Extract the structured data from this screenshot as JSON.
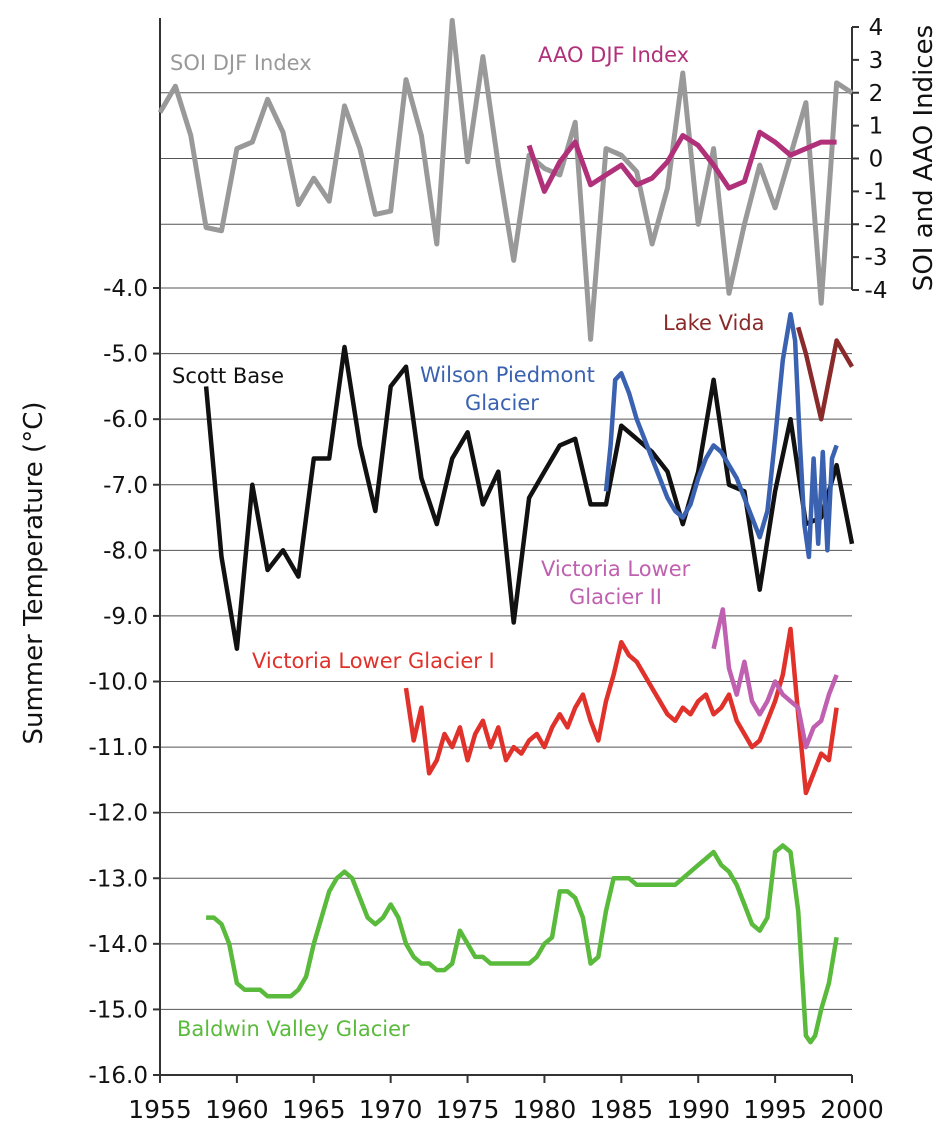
{
  "chart_data": {
    "type": "line",
    "title": "",
    "xlabel": "",
    "ylabel": "Summer Temperature (°C)",
    "y2label": "SOI and AAO Indices",
    "xlim": [
      1955,
      2000
    ],
    "ylim": [
      -16,
      -4
    ],
    "y2lim": [
      -4,
      4
    ],
    "x_ticks": [
      1955,
      1960,
      1965,
      1970,
      1975,
      1980,
      1985,
      1990,
      1995,
      2000
    ],
    "y_ticks": [
      "-4.0",
      "-5.0",
      "-6.0",
      "-7.0",
      "-8.0",
      "-9.0",
      "-10.0",
      "-11.0",
      "-12.0",
      "-13.0",
      "-14.0",
      "-15.0",
      "-16.0"
    ],
    "y2_ticks": [
      "4",
      "3",
      "2",
      "1",
      "0",
      "-1",
      "-2",
      "-3",
      "-4"
    ],
    "grid": true,
    "series": [
      {
        "name": "SOI DJF Index",
        "axis": "right",
        "color": "#999999",
        "x": [
          1955,
          1956,
          1957,
          1958,
          1959,
          1960,
          1961,
          1962,
          1963,
          1964,
          1965,
          1966,
          1967,
          1968,
          1969,
          1970,
          1971,
          1972,
          1973,
          1974,
          1975,
          1976,
          1977,
          1978,
          1979,
          1980,
          1981,
          1982,
          1983,
          1984,
          1985,
          1986,
          1987,
          1988,
          1989,
          1990,
          1991,
          1992,
          1993,
          1994,
          1995,
          1996,
          1997,
          1998,
          1999,
          2000
        ],
        "y": [
          1.4,
          2.2,
          0.7,
          -2.1,
          -2.2,
          0.3,
          0.5,
          1.8,
          0.8,
          -1.4,
          -0.6,
          -1.3,
          1.6,
          0.3,
          -1.7,
          -1.6,
          2.4,
          0.7,
          -2.6,
          4.2,
          -0.1,
          3.1,
          -0.2,
          -3.1,
          0.1,
          -0.3,
          -0.5,
          1.1,
          -5.5,
          0.3,
          0.1,
          -0.4,
          -2.6,
          -0.9,
          2.6,
          -2.0,
          0.3,
          -4.1,
          -2.0,
          -0.2,
          -1.5,
          0.1,
          1.7,
          -4.4,
          2.3,
          2.0
        ]
      },
      {
        "name": "AAO DJF Index",
        "axis": "right",
        "color": "#b0307a",
        "x": [
          1979,
          1980,
          1981,
          1982,
          1983,
          1984,
          1985,
          1986,
          1987,
          1988,
          1989,
          1990,
          1991,
          1992,
          1993,
          1994,
          1995,
          1996,
          1997,
          1998,
          1999
        ],
        "y": [
          0.4,
          -1.0,
          -0.1,
          0.5,
          -0.8,
          -0.5,
          -0.2,
          -0.8,
          -0.6,
          -0.1,
          0.7,
          0.4,
          -0.2,
          -0.9,
          -0.7,
          0.8,
          0.5,
          0.1,
          0.3,
          0.5,
          0.5
        ]
      },
      {
        "name": "Scott Base",
        "axis": "left",
        "color": "#111111",
        "x": [
          1958,
          1959,
          1960,
          1961,
          1962,
          1963,
          1964,
          1965,
          1966,
          1967,
          1968,
          1969,
          1970,
          1971,
          1972,
          1973,
          1974,
          1975,
          1976,
          1977,
          1978,
          1979,
          1980,
          1981,
          1982,
          1983,
          1984,
          1985,
          1986,
          1987,
          1988,
          1989,
          1990,
          1991,
          1992,
          1993,
          1994,
          1995,
          1996,
          1997,
          1998,
          1999,
          2000
        ],
        "y": [
          -5.5,
          -8.1,
          -9.5,
          -7.0,
          -8.3,
          -8.0,
          -8.4,
          -6.6,
          -6.6,
          -4.9,
          -6.4,
          -7.4,
          -5.5,
          -5.2,
          -6.9,
          -7.6,
          -6.6,
          -6.2,
          -7.3,
          -6.8,
          -9.1,
          -7.2,
          -6.8,
          -6.4,
          -6.3,
          -7.3,
          -7.3,
          -6.1,
          -6.3,
          -6.5,
          -6.8,
          -7.6,
          -6.8,
          -5.4,
          -7.0,
          -7.1,
          -8.6,
          -7.1,
          -6.0,
          -7.6,
          -7.5,
          -6.7,
          -7.9
        ]
      },
      {
        "name": "Wilson Piedmont Glacier",
        "label_lines": [
          "Wilson Piedmont",
          "Glacier"
        ],
        "axis": "left",
        "color": "#3a62b0",
        "x": [
          1984.0,
          1984.3,
          1984.6,
          1985.0,
          1985.5,
          1986.0,
          1986.5,
          1987.0,
          1987.5,
          1988.0,
          1988.5,
          1989.0,
          1989.5,
          1990.0,
          1990.5,
          1991.0,
          1991.5,
          1992.0,
          1992.5,
          1993.0,
          1993.5,
          1994.0,
          1994.5,
          1995.0,
          1995.5,
          1996.0,
          1996.3,
          1996.6,
          1996.9,
          1997.2,
          1997.5,
          1997.8,
          1998.1,
          1998.4,
          1998.7,
          1999.0
        ],
        "y": [
          -7.1,
          -6.4,
          -5.4,
          -5.3,
          -5.6,
          -6.0,
          -6.3,
          -6.6,
          -6.9,
          -7.2,
          -7.4,
          -7.5,
          -7.3,
          -6.9,
          -6.6,
          -6.4,
          -6.5,
          -6.7,
          -6.9,
          -7.2,
          -7.5,
          -7.8,
          -7.4,
          -6.3,
          -5.1,
          -4.4,
          -4.8,
          -6.3,
          -7.6,
          -8.1,
          -6.6,
          -7.9,
          -6.5,
          -8.0,
          -6.6,
          -6.4
        ]
      },
      {
        "name": "Lake Vida",
        "axis": "left",
        "color": "#8b2a2a",
        "x": [
          1996.5,
          1997,
          1998,
          1999,
          2000
        ],
        "y": [
          -4.6,
          -5.0,
          -6.0,
          -4.8,
          -5.2
        ]
      },
      {
        "name": "Victoria Lower Glacier I",
        "axis": "left",
        "color": "#e0312b",
        "x": [
          1971.0,
          1971.5,
          1972.0,
          1972.5,
          1973.0,
          1973.5,
          1974.0,
          1974.5,
          1975.0,
          1975.5,
          1976.0,
          1976.5,
          1977.0,
          1977.5,
          1978.0,
          1978.5,
          1979.0,
          1979.5,
          1980.0,
          1980.5,
          1981.0,
          1981.5,
          1982.0,
          1982.5,
          1983.0,
          1983.5,
          1984.0,
          1984.5,
          1985.0,
          1985.5,
          1986.0,
          1986.5,
          1987.0,
          1987.5,
          1988.0,
          1988.5,
          1989.0,
          1989.5,
          1990.0,
          1990.5,
          1991.0,
          1991.5,
          1992.0,
          1992.5,
          1993.0,
          1993.5,
          1994.0,
          1994.5,
          1995.0,
          1995.5,
          1996.0,
          1996.5,
          1997.0,
          1997.5,
          1998.0,
          1998.5,
          1999.0
        ],
        "y": [
          -10.1,
          -10.9,
          -10.4,
          -11.4,
          -11.2,
          -10.8,
          -11.0,
          -10.7,
          -11.2,
          -10.8,
          -10.6,
          -11.0,
          -10.7,
          -11.2,
          -11.0,
          -11.1,
          -10.9,
          -10.8,
          -11.0,
          -10.7,
          -10.5,
          -10.7,
          -10.4,
          -10.2,
          -10.6,
          -10.9,
          -10.3,
          -9.9,
          -9.4,
          -9.6,
          -9.7,
          -9.9,
          -10.1,
          -10.3,
          -10.5,
          -10.6,
          -10.4,
          -10.5,
          -10.3,
          -10.2,
          -10.5,
          -10.4,
          -10.2,
          -10.6,
          -10.8,
          -11.0,
          -10.9,
          -10.6,
          -10.3,
          -9.9,
          -9.2,
          -10.5,
          -11.7,
          -11.4,
          -11.1,
          -11.2,
          -10.4
        ]
      },
      {
        "name": "Victoria Lower Glacier II",
        "label_lines": [
          "Victoria Lower",
          "Glacier II"
        ],
        "axis": "left",
        "color": "#c060b0",
        "x": [
          1991.0,
          1991.3,
          1991.6,
          1992.0,
          1992.5,
          1993.0,
          1993.5,
          1994.0,
          1994.5,
          1995.0,
          1995.5,
          1996.0,
          1996.5,
          1997.0,
          1997.5,
          1998.0,
          1998.5,
          1999.0
        ],
        "y": [
          -9.5,
          -9.2,
          -8.9,
          -9.8,
          -10.2,
          -9.7,
          -10.3,
          -10.5,
          -10.3,
          -10.0,
          -10.2,
          -10.3,
          -10.4,
          -11.0,
          -10.7,
          -10.6,
          -10.2,
          -9.9
        ]
      },
      {
        "name": "Baldwin Valley Glacier",
        "axis": "left",
        "color": "#5aba3c",
        "x": [
          1958.0,
          1958.5,
          1959.0,
          1959.5,
          1960.0,
          1960.5,
          1961.0,
          1961.5,
          1962.0,
          1962.5,
          1963.0,
          1963.5,
          1964.0,
          1964.5,
          1965.0,
          1965.5,
          1966.0,
          1966.5,
          1967.0,
          1967.5,
          1968.0,
          1968.5,
          1969.0,
          1969.5,
          1970.0,
          1970.5,
          1971.0,
          1971.5,
          1972.0,
          1972.5,
          1973.0,
          1973.5,
          1974.0,
          1974.5,
          1975.0,
          1975.5,
          1976.0,
          1976.5,
          1977.0,
          1977.5,
          1978.0,
          1978.5,
          1979.0,
          1979.5,
          1980.0,
          1980.5,
          1981.0,
          1981.5,
          1982.0,
          1982.5,
          1983.0,
          1983.5,
          1984.0,
          1984.5,
          1985.0,
          1985.5,
          1986.0,
          1986.5,
          1987.0,
          1987.5,
          1988.0,
          1988.5,
          1989.0,
          1989.5,
          1990.0,
          1990.5,
          1991.0,
          1991.5,
          1992.0,
          1992.5,
          1993.0,
          1993.5,
          1994.0,
          1994.5,
          1995.0,
          1995.5,
          1996.0,
          1996.5,
          1997.0,
          1997.3,
          1997.6,
          1998.0,
          1998.5,
          1999.0
        ],
        "y": [
          -13.6,
          -13.6,
          -13.7,
          -14.0,
          -14.6,
          -14.7,
          -14.7,
          -14.7,
          -14.8,
          -14.8,
          -14.8,
          -14.8,
          -14.7,
          -14.5,
          -14.0,
          -13.6,
          -13.2,
          -13.0,
          -12.9,
          -13.0,
          -13.3,
          -13.6,
          -13.7,
          -13.6,
          -13.4,
          -13.6,
          -14.0,
          -14.2,
          -14.3,
          -14.3,
          -14.4,
          -14.4,
          -14.3,
          -13.8,
          -14.0,
          -14.2,
          -14.2,
          -14.3,
          -14.3,
          -14.3,
          -14.3,
          -14.3,
          -14.3,
          -14.2,
          -14.0,
          -13.9,
          -13.2,
          -13.2,
          -13.3,
          -13.6,
          -14.3,
          -14.2,
          -13.5,
          -13.0,
          -13.0,
          -13.0,
          -13.1,
          -13.1,
          -13.1,
          -13.1,
          -13.1,
          -13.1,
          -13.0,
          -12.9,
          -12.8,
          -12.7,
          -12.6,
          -12.8,
          -12.9,
          -13.1,
          -13.4,
          -13.7,
          -13.8,
          -13.6,
          -12.6,
          -12.5,
          -12.6,
          -13.5,
          -15.4,
          -15.5,
          -15.4,
          -15.0,
          -14.6,
          -13.9
        ]
      }
    ]
  }
}
